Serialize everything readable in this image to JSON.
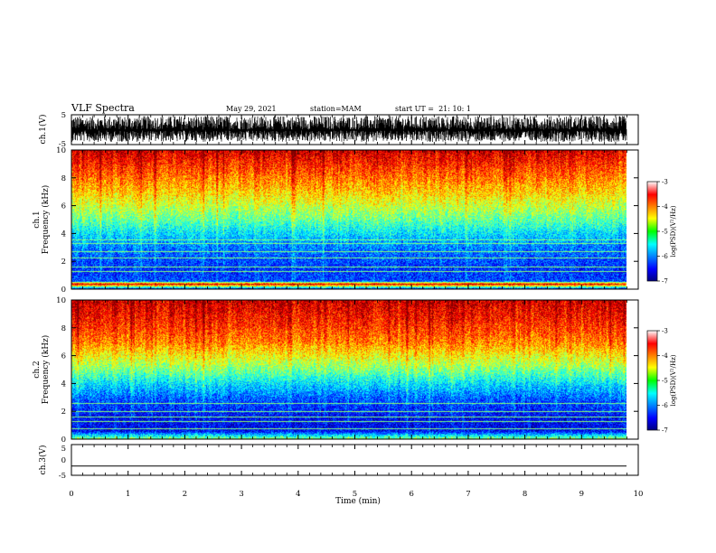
{
  "header": {
    "title": "VLF Spectra",
    "date": "May 29, 2021",
    "station": "station=MAM",
    "start_ut": "start UT =  21: 10: 1"
  },
  "chart_data": [
    {
      "type": "line",
      "panel": "ch1-waveform",
      "ylabel": "ch.1(V)",
      "ylim": [
        -5,
        5
      ],
      "yticks": [
        "5",
        "-5"
      ],
      "xlim": [
        0,
        10
      ],
      "note_values": "amplitude noise mostly between about -3.5 and 4.5 V, continuous"
    },
    {
      "type": "heatmap",
      "panel": "ch1-spectrogram",
      "ylabel": "ch.1\nFrequency (kHz)",
      "ylabel_lines": [
        "ch.1",
        "Frequency (kHz)"
      ],
      "ylim": [
        0,
        10
      ],
      "yticks": [
        "0",
        "2",
        "4",
        "6",
        "8",
        "10"
      ],
      "xlim": [
        0,
        9.83
      ],
      "colorbar": {
        "label": "log(PSD)(V²/Hz)",
        "range": [
          -7,
          -3
        ],
        "ticks": [
          "-3",
          "-4",
          "-5",
          "-6",
          "-7"
        ]
      },
      "profile": [
        {
          "f": 0.0,
          "v": -6.8
        },
        {
          "f": 0.4,
          "v": -3.3
        },
        {
          "f": 0.6,
          "v": -6.2
        },
        {
          "f": 1.5,
          "v": -6.3
        },
        {
          "f": 3.0,
          "v": -6.0
        },
        {
          "f": 4.0,
          "v": -5.6
        },
        {
          "f": 5.0,
          "v": -5.1
        },
        {
          "f": 6.0,
          "v": -4.7
        },
        {
          "f": 7.0,
          "v": -4.3
        },
        {
          "f": 8.5,
          "v": -3.8
        },
        {
          "f": 10.0,
          "v": -3.3
        }
      ],
      "lines_khz": [
        0.4,
        0.5,
        1.3,
        1.6,
        2.3,
        2.7,
        3.3,
        3.6
      ]
    },
    {
      "type": "heatmap",
      "panel": "ch2-spectrogram",
      "ylabel": "ch.2\nFrequency (kHz)",
      "ylabel_lines": [
        "ch.2",
        "Frequency (kHz)"
      ],
      "ylim": [
        0,
        10
      ],
      "yticks": [
        "0",
        "2",
        "4",
        "6",
        "8",
        "10"
      ],
      "xlim": [
        0,
        9.83
      ],
      "colorbar": {
        "label": "log(PSD)(V²/Hz)",
        "range": [
          -7,
          -3
        ],
        "ticks": [
          "-3",
          "-4",
          "-5",
          "-6",
          "-7"
        ]
      },
      "profile": [
        {
          "f": 0.0,
          "v": -4.8
        },
        {
          "f": 0.3,
          "v": -5.6
        },
        {
          "f": 0.6,
          "v": -6.5
        },
        {
          "f": 1.5,
          "v": -6.5
        },
        {
          "f": 3.0,
          "v": -6.1
        },
        {
          "f": 4.0,
          "v": -5.6
        },
        {
          "f": 5.0,
          "v": -5.0
        },
        {
          "f": 6.0,
          "v": -4.5
        },
        {
          "f": 7.0,
          "v": -4.0
        },
        {
          "f": 8.5,
          "v": -3.6
        },
        {
          "f": 10.0,
          "v": -3.3
        }
      ],
      "lines_khz": [
        0.8,
        1.3,
        1.6,
        2.0,
        2.6
      ]
    },
    {
      "type": "line",
      "panel": "ch3-waveform",
      "ylabel": "ch.3(V)",
      "ylim": [
        -5,
        5
      ],
      "yticks": [
        "5",
        "0",
        "-5"
      ],
      "xlim": [
        0,
        10
      ],
      "constant_value": -2.0
    }
  ],
  "xaxis": {
    "label": "Time (min)",
    "range": [
      0,
      10
    ],
    "ticks": [
      "0",
      "1",
      "2",
      "3",
      "4",
      "5",
      "6",
      "7",
      "8",
      "9",
      "10"
    ]
  },
  "colors": {
    "jet_stops": [
      "#00008f",
      "#0000ff",
      "#00ffff",
      "#ffff00",
      "#ff0000",
      "#800000"
    ]
  }
}
